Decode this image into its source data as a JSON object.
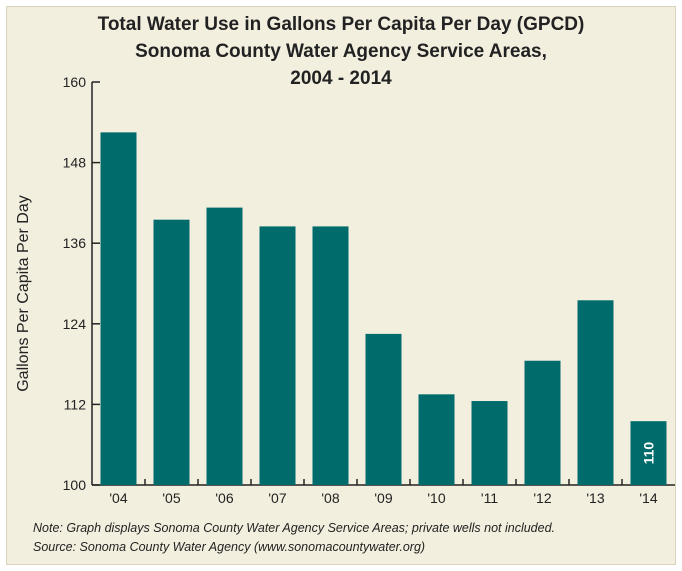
{
  "chart_data": {
    "type": "bar",
    "title_lines": [
      "Total Water Use in Gallons Per Capita Per Day (GPCD)",
      "Sonoma County Water Agency Service Areas,",
      "2004 - 2014"
    ],
    "ylabel": "Gallons Per Capita Per Day",
    "xlabel": "",
    "categories": [
      "'04",
      "'05",
      "'06",
      "'07",
      "'08",
      "'09",
      "'10",
      "'11",
      "'12",
      "'13",
      "'14"
    ],
    "values": [
      152.5,
      139.5,
      141.3,
      138.5,
      138.5,
      122.5,
      113.5,
      112.5,
      118.5,
      127.5,
      109.5
    ],
    "data_labels": {
      "10": "110"
    },
    "ylim": [
      100,
      160
    ],
    "yticks": [
      "100",
      "112",
      "124",
      "136",
      "148",
      "160"
    ],
    "grid": false,
    "bar_color": "#006b6b",
    "label_color": "#ffffff"
  },
  "notes": {
    "note_line": "Note: Graph displays Sonoma County Water Agency Service Areas; private wells not included.",
    "source_line": "Source: Sonoma County Water Agency (www.sonomacountywater.org)"
  }
}
